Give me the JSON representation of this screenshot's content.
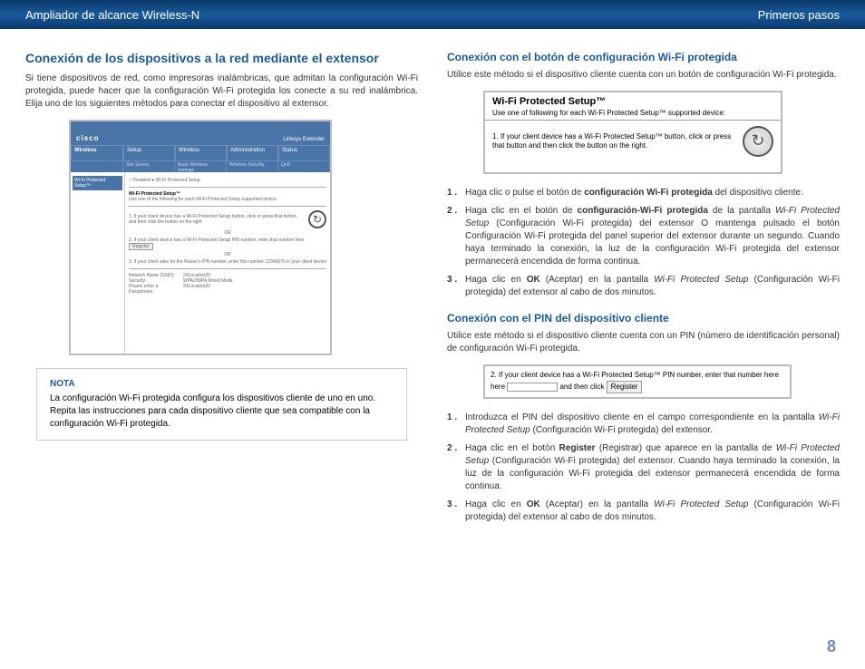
{
  "header": {
    "left": "Ampliador de alcance Wireless-N",
    "right": "Primeros pasos"
  },
  "left_col": {
    "title": "Conexión de los dispositivos a la red mediante el extensor",
    "intro": "Si tiene dispositivos de red, como impresoras inalámbricas, que admitan la configuración Wi-Fi protegida, puede hacer que la configuración Wi-Fi protegida los conecte a su red inalámbrica. Elija uno de los siguientes métodos para conectar el dispositivo al extensor.",
    "fig1": {
      "logo": "cisco",
      "product": "Linksys Extender",
      "side_label": "Wireless",
      "side_item": "Wi-Fi Protected Setup™",
      "tabs": [
        "Setup",
        "Wireless",
        "Administration",
        "Status"
      ],
      "subtabs": [
        "Site Survey",
        "Basic Wireless Settings",
        "Wireless Security",
        "QoS"
      ],
      "radio": "○ Disabled  ● Wi-Fi Protected Setup",
      "h": "Wi-Fi Protected Setup™",
      "sub": "Use one of the following for each Wi-Fi Protected Setup supported device:",
      "step1": "1. If your client device has a Wi-Fi Protected Setup button, click or press that button, and then click the button on the right",
      "or": "OR",
      "step2": "2. If your client device has a Wi-Fi Protected Setup PIN number, enter that number here",
      "reg": "Register",
      "step3": "3. If your client asks for the Router's PIN number, enter this number 12345670 in your client device",
      "net_name": "Network Name (SSID):",
      "net_val": "24Location20",
      "sec": "Security:",
      "sec_val": "WPA2/WPA Mixed Mode",
      "pass": "Please enter a Passphrase:",
      "pass_val": "24Location20"
    },
    "note_label": "NOTA",
    "note_text": "La configuración Wi-Fi protegida configura los dispositivos cliente de uno en uno. Repita las instrucciones para cada dispositivo cliente que sea compatible con la configuración Wi-Fi protegida."
  },
  "right_col": {
    "sub1_title": "Conexión con el botón de configuración Wi-Fi protegida",
    "sub1_intro": "Utilice este método si el dispositivo cliente cuenta con un botón de configuración Wi-Fi protegida.",
    "fig2": {
      "title": "Wi-Fi Protected Setup™",
      "sub": "Use one of following for each Wi-Fi Protected Setup™ supported device:",
      "text": "1. If your client device has a Wi-Fi Protected Setup™ button, click or press that button and then click the button on the right."
    },
    "list1": [
      {
        "n": "1 .",
        "t": "Haga clic o pulse el botón de <b>configuración Wi-Fi protegida</b> del dispositivo cliente."
      },
      {
        "n": "2 .",
        "t": "Haga clic en el botón de <b>configuración-Wi-Fi protegida</b> de la pantalla <i>Wi-Fi Protected Setup</i> (Configuración Wi-Fi protegida) del extensor O mantenga pulsado el botón Configuración Wi-Fi protegida del panel superior del extensor durante un segundo. Cuando haya terminado la conexión, la luz de la configuración Wi-Fi protegida del extensor permanecerá encendida de forma continua."
      },
      {
        "n": "3 .",
        "t": "Haga clic en <b>OK</b> (Aceptar) en la pantalla <i>Wi-Fi Protected Setup</i> (Configuración Wi-Fi protegida) del extensor al cabo de dos minutos."
      }
    ],
    "sub2_title": "Conexión con el PIN del dispositivo cliente",
    "sub2_intro": "Utilice este método si el dispositivo cliente cuenta con un PIN (número de identificación personal) de configuración Wi-Fi protegida.",
    "fig3": {
      "text": "2. If your client device has a Wi-Fi Protected Setup™ PIN number, enter that number here",
      "mid": "and then click",
      "btn": "Register"
    },
    "list2": [
      {
        "n": "1 .",
        "t": "Introduzca el PIN del dispositivo cliente en el campo correspondiente en la pantalla <i>Wi-Fi Protected Setup</i> (Configuración Wi-Fi protegida) del extensor."
      },
      {
        "n": "2 .",
        "t": "Haga clic en el botón <b>Register</b> (Registrar) que aparece en la pantalla de <i>Wi-Fi Protected Setup</i> (Configuración Wi-Fi protegida) del extensor. Cuando haya terminado la conexión, la luz de la configuración Wi-Fi protegida del extensor permanecerá encendida de forma continua."
      },
      {
        "n": "3 .",
        "t": "Haga clic en <b>OK</b> (Aceptar) en la pantalla <i>Wi-Fi Protected Setup</i> (Configuración Wi-Fi protegida) del extensor al cabo de dos minutos."
      }
    ]
  },
  "page_number": "8"
}
